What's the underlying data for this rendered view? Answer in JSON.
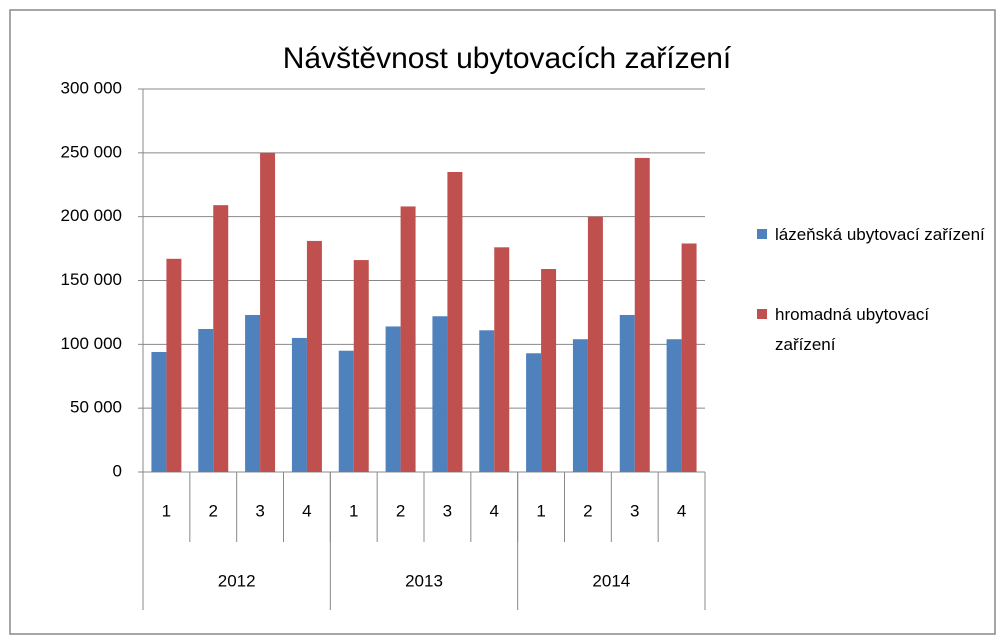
{
  "chart_data": {
    "type": "bar",
    "title": "Návštěvnost ubytovacích zařízení",
    "categories": [
      "1",
      "2",
      "3",
      "4",
      "1",
      "2",
      "3",
      "4",
      "1",
      "2",
      "3",
      "4"
    ],
    "category_groups": [
      "2012",
      "2013",
      "2014"
    ],
    "series": [
      {
        "name": "lázeňská ubytovací zařízení",
        "color": "#4f81bd",
        "values": [
          94000,
          112000,
          123000,
          105000,
          95000,
          114000,
          122000,
          111000,
          93000,
          104000,
          123000,
          104000
        ]
      },
      {
        "name": "hromadná ubytovací zařízení",
        "color": "#c0504d",
        "values": [
          167000,
          209000,
          250000,
          181000,
          166000,
          208000,
          235000,
          176000,
          159000,
          200000,
          246000,
          179000
        ]
      }
    ],
    "ylim": [
      0,
      300000
    ],
    "yticks": [
      0,
      {
        "value": 50000,
        "label": "50 000"
      },
      {
        "value": 100000,
        "label": "100 000"
      },
      {
        "value": 150000,
        "label": "150 000"
      },
      {
        "value": 200000,
        "label": "200 000"
      },
      {
        "value": 250000,
        "label": "250 000"
      },
      {
        "value": 300000,
        "label": "300 000"
      }
    ],
    "grid": true,
    "legend": "right"
  }
}
